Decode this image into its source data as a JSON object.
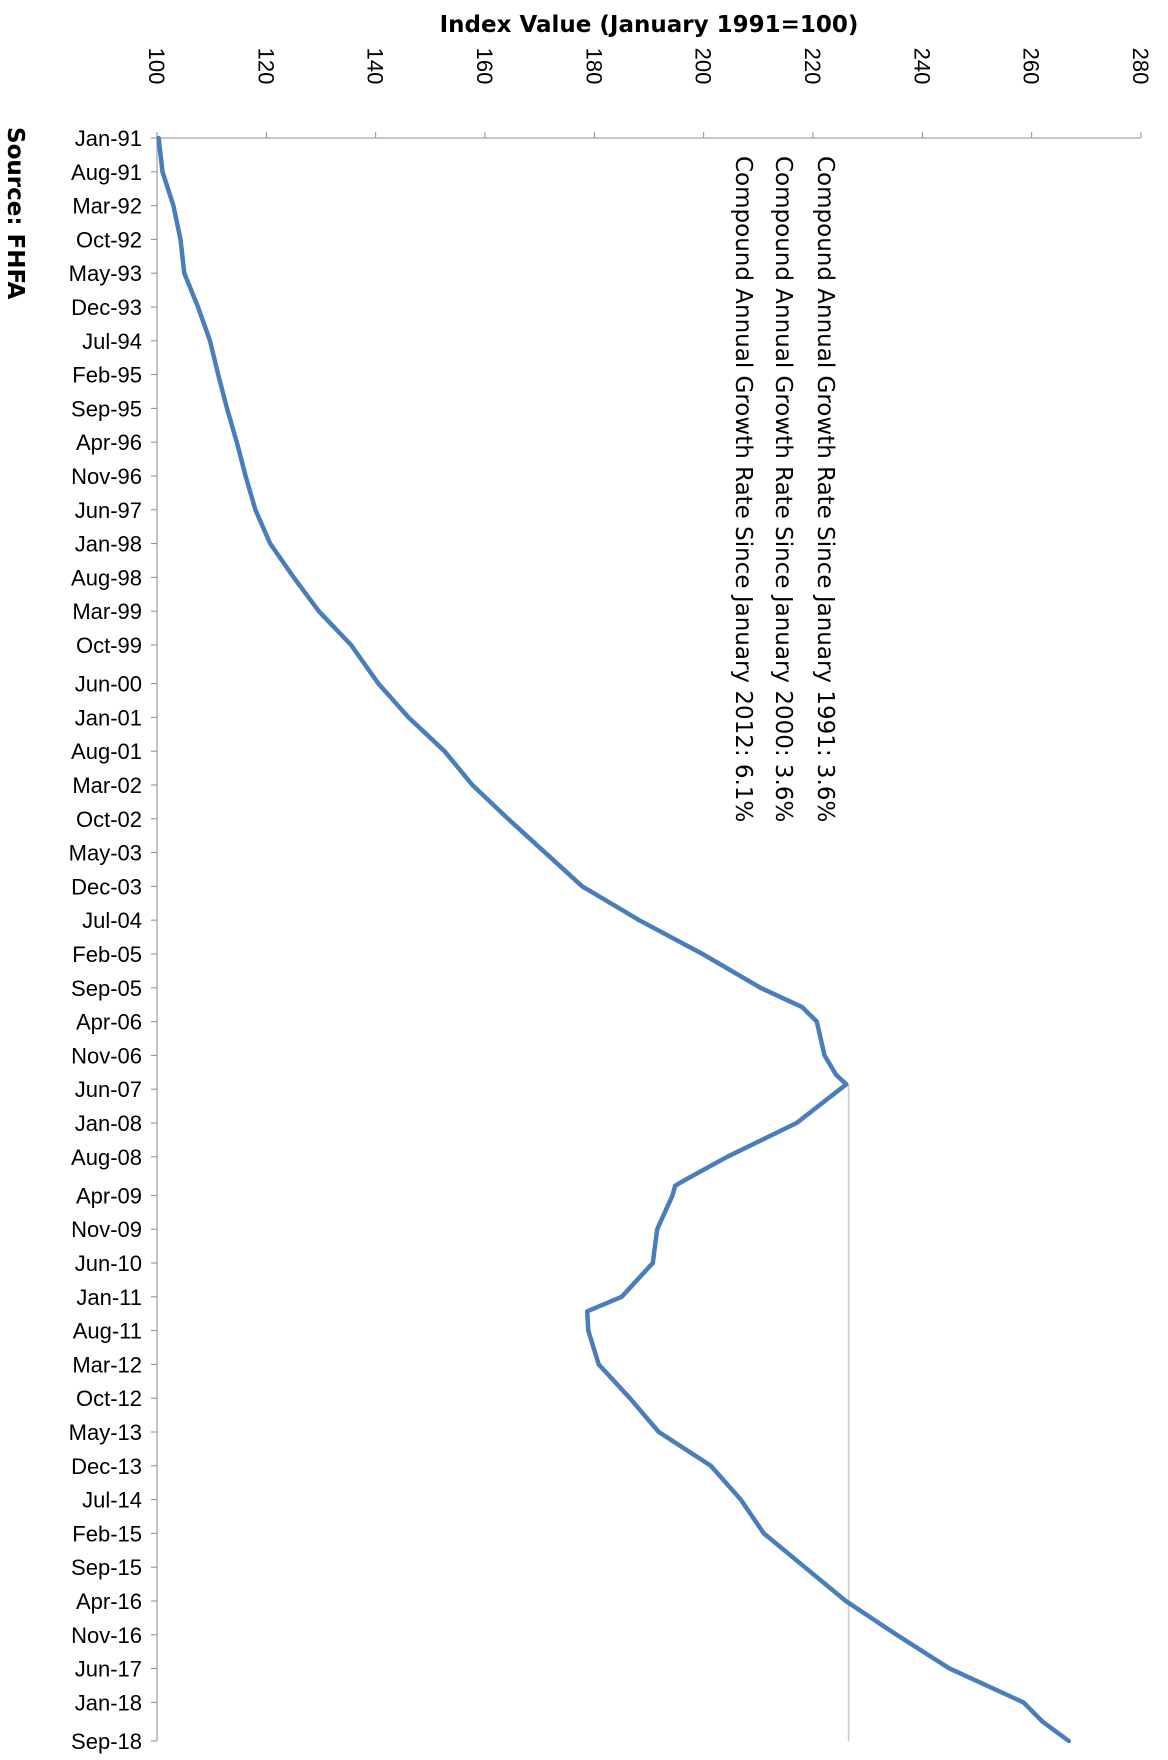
{
  "chart_data": {
    "type": "line",
    "orientation": "rotated",
    "title": "",
    "ylabel": "Index Value (January 1991=100)",
    "xlabel": "",
    "source": "Source: FHFA",
    "value_axis": {
      "range": [
        100,
        280
      ],
      "ticks": [
        100,
        120,
        140,
        160,
        180,
        200,
        220,
        240,
        260,
        280
      ]
    },
    "time_axis": {
      "range": [
        "Jan-91",
        "Sep-18"
      ],
      "tick_labels": [
        "Jan-91",
        "Aug-91",
        "Mar-92",
        "Oct-92",
        "May-93",
        "Dec-93",
        "Jul-94",
        "Feb-95",
        "Sep-95",
        "Apr-96",
        "Nov-96",
        "Jun-97",
        "Jan-98",
        "Aug-98",
        "Mar-99",
        "Oct-99",
        "Jun-00",
        "Jan-01",
        "Aug-01",
        "Mar-02",
        "Oct-02",
        "May-03",
        "Dec-03",
        "Jul-04",
        "Feb-05",
        "Sep-05",
        "Apr-06",
        "Nov-06",
        "Jun-07",
        "Jan-08",
        "Aug-08",
        "Apr-09",
        "Nov-09",
        "Jun-10",
        "Jan-11",
        "Aug-11",
        "Mar-12",
        "Oct-12",
        "May-13",
        "Dec-13",
        "Jul-14",
        "Feb-15",
        "Sep-15",
        "Apr-16",
        "Nov-16",
        "Jun-17",
        "Jan-18",
        "Sep-18"
      ],
      "tick_months": [
        0,
        7,
        14,
        21,
        28,
        35,
        42,
        49,
        56,
        63,
        70,
        77,
        84,
        91,
        98,
        105,
        113,
        120,
        127,
        134,
        141,
        148,
        155,
        162,
        169,
        176,
        183,
        190,
        197,
        204,
        211,
        219,
        226,
        233,
        240,
        247,
        254,
        261,
        268,
        275,
        282,
        289,
        296,
        303,
        310,
        317,
        324,
        332
      ]
    },
    "annotations": [
      "Compound Annual Growth Rate Since January 1991:  3.6%",
      "Compound Annual Growth Rate Since January 2000:  3.6%",
      "Compound Annual Growth Rate Since January 2012:  6.1%"
    ],
    "reference_line": {
      "value": 226.5,
      "from": "May-07",
      "to": "Sep-18",
      "color": "#c8c8c8"
    },
    "series": [
      {
        "color": "#4a7ebb",
        "x": [
          "Jan-91",
          "Aug-91",
          "Mar-92",
          "Oct-92",
          "May-93",
          "Dec-93",
          "Jul-94",
          "Feb-95",
          "Sep-95",
          "Apr-96",
          "Nov-96",
          "Jun-97",
          "Jan-98",
          "Aug-98",
          "Mar-99",
          "Oct-99",
          "Jun-00",
          "Jan-01",
          "Aug-01",
          "Mar-02",
          "Oct-02",
          "May-03",
          "Dec-03",
          "Jul-04",
          "Feb-05",
          "Sep-05",
          "Jan-06",
          "Apr-06",
          "Nov-06",
          "Mar-07",
          "May-07",
          "Jan-08",
          "Aug-08",
          "Jan-09",
          "Feb-09",
          "Apr-09",
          "Nov-09",
          "Jun-10",
          "Jan-11",
          "Apr-11",
          "Aug-11",
          "Mar-12",
          "Oct-12",
          "May-13",
          "Dec-13",
          "Jul-14",
          "Feb-15",
          "Sep-15",
          "Apr-16",
          "Nov-16",
          "Jun-17",
          "Jan-18",
          "May-18",
          "Sep-18"
        ],
        "values": [
          100.3,
          101.0,
          103.0,
          104.3,
          105.0,
          107.5,
          109.7,
          111.2,
          112.8,
          114.6,
          116.2,
          118.0,
          120.7,
          125.0,
          129.6,
          135.5,
          140.5,
          146.0,
          152.6,
          157.7,
          164.2,
          171.0,
          177.8,
          188.2,
          199.8,
          210.4,
          218.0,
          220.7,
          222.1,
          224.2,
          226.1,
          217.0,
          204.3,
          196.3,
          194.8,
          194.3,
          191.5,
          190.7,
          185.0,
          178.7,
          178.9,
          180.8,
          186.5,
          191.8,
          201.3,
          206.8,
          211.0,
          218.5,
          226.0,
          235.3,
          245.0,
          258.5,
          262.0,
          266.8
        ]
      }
    ]
  }
}
